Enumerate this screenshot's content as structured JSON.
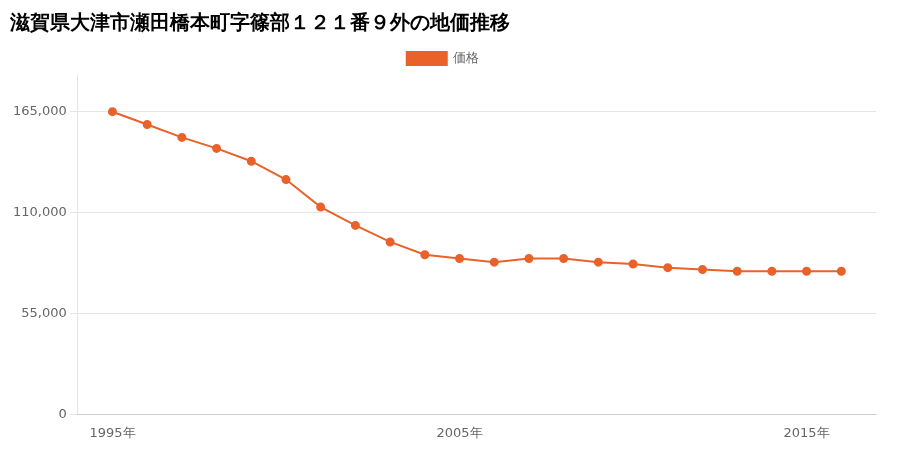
{
  "chart_data": {
    "type": "line",
    "title": "滋賀県大津市瀬田橋本町字篠部１２１番９外の地価推移",
    "x": [
      1995,
      1996,
      1997,
      1998,
      1999,
      2000,
      2001,
      2002,
      2003,
      2004,
      2005,
      2006,
      2007,
      2008,
      2009,
      2010,
      2011,
      2012,
      2013,
      2014,
      2015,
      2016
    ],
    "series": [
      {
        "name": "価格",
        "color": "#e8622a",
        "values": [
          165000,
          158000,
          151000,
          145000,
          138000,
          128000,
          113000,
          103000,
          94000,
          87000,
          85000,
          83000,
          85000,
          85000,
          83000,
          82000,
          80000,
          79000,
          78000,
          78000,
          78000,
          78000
        ]
      }
    ],
    "xlim": [
      1994,
      2017
    ],
    "xticks": [
      {
        "value": 1995,
        "label": "1995年"
      },
      {
        "value": 2005,
        "label": "2005年"
      },
      {
        "value": 2015,
        "label": "2015年"
      }
    ],
    "ylim": [
      0,
      185000
    ],
    "yticks": [
      0,
      {
        "value": 55000,
        "label": "55,000"
      },
      {
        "value": 110000,
        "label": "110,000"
      },
      {
        "value": 165000,
        "label": "165,000"
      }
    ],
    "grid": "y",
    "legend": "top",
    "marker": "circle"
  }
}
